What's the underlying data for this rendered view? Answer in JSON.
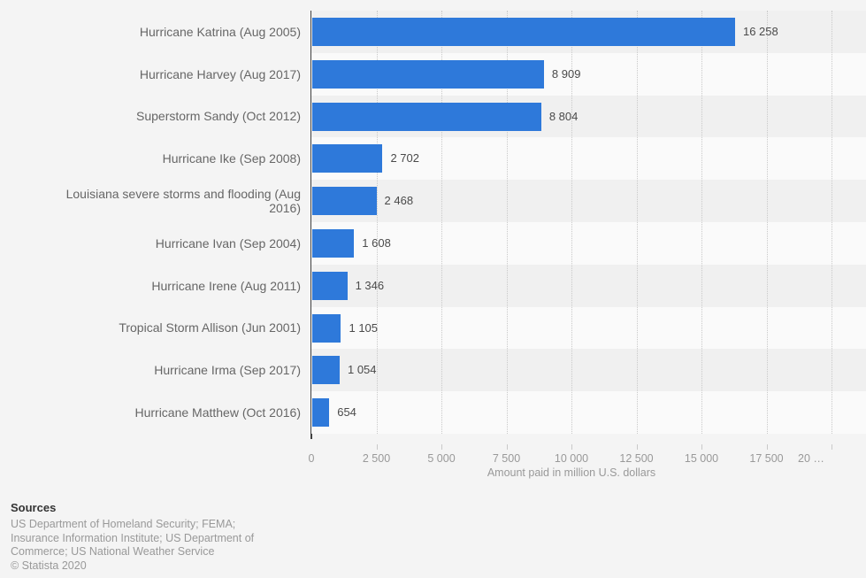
{
  "chart_data": {
    "type": "bar",
    "orientation": "horizontal",
    "categories": [
      "Hurricane Katrina (Aug 2005)",
      "Hurricane Harvey (Aug 2017)",
      "Superstorm Sandy (Oct 2012)",
      "Hurricane Ike (Sep 2008)",
      "Louisiana severe storms and flooding (Aug 2016)",
      "Hurricane Ivan (Sep 2004)",
      "Hurricane Irene (Aug 2011)",
      "Tropical Storm Allison (Jun 2001)",
      "Hurricane Irma (Sep 2017)",
      "Hurricane Matthew (Oct 2016)"
    ],
    "values": [
      16258,
      8909,
      8804,
      2702,
      2468,
      1608,
      1346,
      1105,
      1054,
      654
    ],
    "value_labels": [
      "16 258",
      "8 909",
      "8 804",
      "2 702",
      "2 468",
      "1 608",
      "1 346",
      "1 105",
      "1 054",
      "654"
    ],
    "xlabel": "Amount paid in million U.S. dollars",
    "x_ticks": [
      {
        "value": 0,
        "label": "0"
      },
      {
        "value": 2500,
        "label": "2 500"
      },
      {
        "value": 5000,
        "label": "5 000"
      },
      {
        "value": 7500,
        "label": "7 500"
      },
      {
        "value": 10000,
        "label": "10 000"
      },
      {
        "value": 12500,
        "label": "12 500"
      },
      {
        "value": 15000,
        "label": "15 000"
      },
      {
        "value": 17500,
        "label": "17 500"
      },
      {
        "value": 20000,
        "label": "20 …",
        "clipped": true
      }
    ],
    "xlim": [
      0,
      21300
    ],
    "grid": "vertical-dotted",
    "legend": "none",
    "row_stripes": true
  },
  "colors": {
    "bar": "#2e79da",
    "background": "#f4f4f4",
    "stripe_dark": "#f0f0f0",
    "stripe_light": "#fafafa",
    "axis_line": "#404040",
    "gridline": "#c9c9c9",
    "category_label": "#666666",
    "value_label": "#4a4a4a",
    "tick_label": "#999999"
  },
  "footer": {
    "sources_title": "Sources",
    "source_lines": [
      "US Department of Homeland Security; FEMA;",
      "Insurance Information Institute; US Department of",
      "Commerce; US National Weather Service"
    ],
    "copyright": "© Statista 2020"
  }
}
